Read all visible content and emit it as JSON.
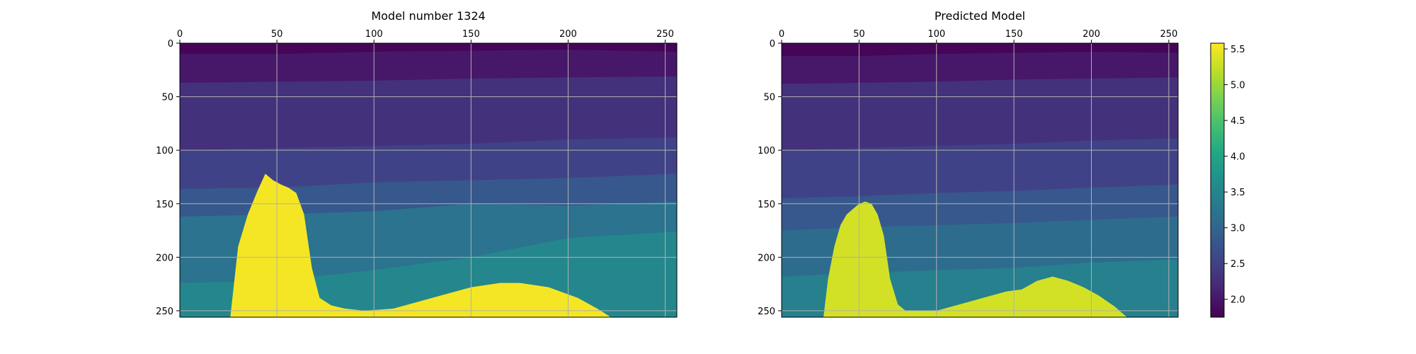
{
  "chart_data": [
    {
      "type": "heatmap",
      "title": "Model number 1324",
      "xlabel": "",
      "ylabel": "",
      "xlim": [
        0,
        256
      ],
      "ylim": [
        256,
        0
      ],
      "x_ticks": [
        0,
        50,
        100,
        150,
        200,
        250
      ],
      "y_ticks": [
        0,
        50,
        100,
        150,
        200,
        250
      ],
      "grid": true,
      "x_axis_position": "top",
      "y_axis_inverted": true,
      "colormap": "viridis",
      "value_range": [
        1.75,
        5.55
      ],
      "layers": [
        {
          "x": [
            0,
            50,
            100,
            150,
            200,
            256
          ],
          "depth": [
            0,
            0,
            0,
            0,
            0,
            0
          ],
          "value": 1.8
        },
        {
          "x": [
            0,
            50,
            100,
            150,
            200,
            256
          ],
          "depth": [
            10,
            10,
            8,
            7,
            6,
            8
          ],
          "value": 2.0
        },
        {
          "x": [
            0,
            50,
            100,
            150,
            200,
            256
          ],
          "depth": [
            37,
            36,
            35,
            33,
            32,
            31
          ],
          "value": 2.3
        },
        {
          "x": [
            0,
            50,
            100,
            150,
            200,
            256
          ],
          "depth": [
            100,
            98,
            96,
            94,
            90,
            88
          ],
          "value": 2.5
        },
        {
          "x": [
            0,
            50,
            100,
            150,
            200,
            256
          ],
          "depth": [
            136,
            135,
            130,
            128,
            126,
            122
          ],
          "value": 2.8
        },
        {
          "x": [
            0,
            50,
            100,
            150,
            200,
            256
          ],
          "depth": [
            162,
            160,
            157,
            150,
            152,
            148
          ],
          "value": 3.2
        },
        {
          "x": [
            0,
            50,
            100,
            150,
            200,
            256
          ],
          "depth": [
            224,
            222,
            212,
            200,
            182,
            176
          ],
          "value": 3.5
        }
      ],
      "salt_body": {
        "x": [
          26,
          30,
          35,
          40,
          44,
          48,
          52,
          56,
          60,
          64,
          68,
          72,
          78,
          85,
          95,
          110,
          130,
          150,
          165,
          175,
          190,
          205,
          215,
          222
        ],
        "top_depth": [
          256,
          190,
          160,
          138,
          122,
          128,
          132,
          135,
          140,
          160,
          210,
          238,
          245,
          248,
          250,
          248,
          238,
          228,
          224,
          224,
          228,
          238,
          248,
          256
        ],
        "value": 5.5
      }
    },
    {
      "type": "heatmap",
      "title": "Predicted Model",
      "xlabel": "",
      "ylabel": "",
      "xlim": [
        0,
        256
      ],
      "ylim": [
        256,
        0
      ],
      "x_ticks": [
        0,
        50,
        100,
        150,
        200,
        250
      ],
      "y_ticks": [
        0,
        50,
        100,
        150,
        200,
        250
      ],
      "grid": true,
      "x_axis_position": "top",
      "y_axis_inverted": true,
      "colormap": "viridis",
      "value_range": [
        1.75,
        5.55
      ],
      "layers": [
        {
          "x": [
            0,
            50,
            100,
            150,
            200,
            256
          ],
          "depth": [
            0,
            0,
            0,
            0,
            0,
            0
          ],
          "value": 1.8
        },
        {
          "x": [
            0,
            50,
            100,
            150,
            200,
            256
          ],
          "depth": [
            12,
            12,
            10,
            9,
            8,
            9
          ],
          "value": 2.0
        },
        {
          "x": [
            0,
            50,
            100,
            150,
            200,
            256
          ],
          "depth": [
            38,
            37,
            36,
            34,
            33,
            32
          ],
          "value": 2.3
        },
        {
          "x": [
            0,
            50,
            100,
            150,
            200,
            256
          ],
          "depth": [
            100,
            98,
            96,
            94,
            91,
            89
          ],
          "value": 2.5
        },
        {
          "x": [
            0,
            50,
            100,
            150,
            200,
            256
          ],
          "depth": [
            145,
            143,
            140,
            138,
            135,
            132
          ],
          "value": 2.8
        },
        {
          "x": [
            0,
            50,
            100,
            150,
            200,
            256
          ],
          "depth": [
            175,
            172,
            170,
            168,
            165,
            162
          ],
          "value": 3.1
        },
        {
          "x": [
            0,
            50,
            100,
            150,
            200,
            256
          ],
          "depth": [
            218,
            215,
            212,
            210,
            205,
            202
          ],
          "value": 3.4
        }
      ],
      "salt_body": {
        "x": [
          27,
          30,
          34,
          38,
          42,
          46,
          50,
          54,
          58,
          62,
          66,
          70,
          75,
          80,
          90,
          100,
          115,
          130,
          145,
          155,
          165,
          175,
          185,
          195,
          205,
          215,
          223
        ],
        "top_depth": [
          256,
          220,
          190,
          170,
          160,
          155,
          150,
          148,
          150,
          160,
          180,
          220,
          244,
          250,
          250,
          250,
          244,
          238,
          232,
          230,
          222,
          218,
          222,
          228,
          236,
          246,
          256
        ],
        "value": 5.3
      }
    }
  ],
  "colorbar": {
    "colormap": "viridis",
    "min": 1.75,
    "max": 5.58,
    "ticks": [
      2.0,
      2.5,
      3.0,
      3.5,
      4.0,
      4.5,
      5.0,
      5.5
    ]
  },
  "colors": {
    "grid": "#b0b0b0",
    "frame": "#000000",
    "background": "#ffffff"
  }
}
